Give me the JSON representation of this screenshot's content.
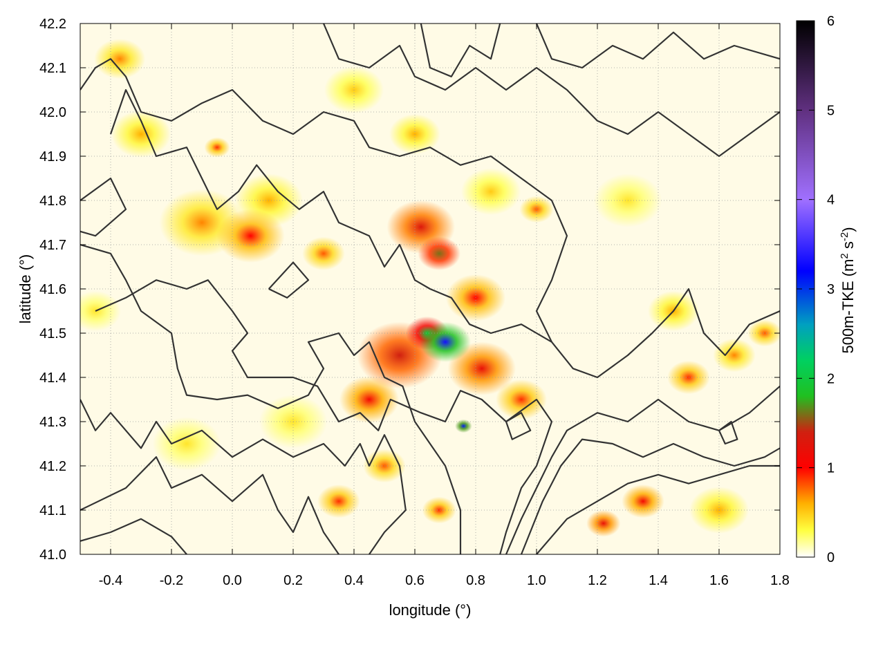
{
  "chart_data": {
    "type": "heatmap",
    "xlabel": "longitude (°)",
    "ylabel": "latitude (°)",
    "xlim": [
      -0.5,
      1.8
    ],
    "ylim": [
      41.0,
      42.2
    ],
    "x_ticks": [
      "-0.4",
      "-0.2",
      "0.0",
      "0.2",
      "0.4",
      "0.6",
      "0.8",
      "1.0",
      "1.2",
      "1.4",
      "1.6",
      "1.8"
    ],
    "x_tick_values": [
      -0.4,
      -0.2,
      0.0,
      0.2,
      0.4,
      0.6,
      0.8,
      1.0,
      1.2,
      1.4,
      1.6,
      1.8
    ],
    "y_ticks": [
      "41.0",
      "41.1",
      "41.2",
      "41.3",
      "41.4",
      "41.5",
      "41.6",
      "41.7",
      "41.8",
      "41.9",
      "42.0",
      "42.1",
      "42.2"
    ],
    "y_tick_values": [
      41.0,
      41.1,
      41.2,
      41.3,
      41.4,
      41.5,
      41.6,
      41.7,
      41.8,
      41.9,
      42.0,
      42.1,
      42.2
    ],
    "grid": true,
    "colorbar": {
      "label_prefix": "500m-TKE (m",
      "label_sup1": "2",
      "label_mid": " s",
      "label_sup2": "-2",
      "label_suffix": ")",
      "range": [
        0,
        6
      ],
      "ticks": [
        "0",
        "1",
        "2",
        "3",
        "4",
        "5",
        "6"
      ],
      "tick_values": [
        0,
        1,
        2,
        3,
        4,
        5,
        6
      ],
      "colors": [
        {
          "value": 0.0,
          "color": "#ffffff"
        },
        {
          "value": 0.3,
          "color": "#ffff40"
        },
        {
          "value": 0.6,
          "color": "#ffb000"
        },
        {
          "value": 1.0,
          "color": "#ff0000"
        },
        {
          "value": 1.4,
          "color": "#d02010"
        },
        {
          "value": 1.8,
          "color": "#20c020"
        },
        {
          "value": 2.2,
          "color": "#00d060"
        },
        {
          "value": 2.6,
          "color": "#00a0c0"
        },
        {
          "value": 3.2,
          "color": "#0000ff"
        },
        {
          "value": 4.0,
          "color": "#a070ff"
        },
        {
          "value": 5.0,
          "color": "#603080"
        },
        {
          "value": 6.0,
          "color": "#000000"
        }
      ]
    },
    "field_features": [
      {
        "lon": 0.7,
        "lat": 41.48,
        "value": 3.3,
        "radius": 0.06
      },
      {
        "lon": 0.76,
        "lat": 41.29,
        "value": 3.1,
        "radius": 0.02
      },
      {
        "lon": 0.64,
        "lat": 41.5,
        "value": 2.0,
        "radius": 0.05
      },
      {
        "lon": 0.68,
        "lat": 41.68,
        "value": 1.6,
        "radius": 0.05
      },
      {
        "lon": 0.62,
        "lat": 41.74,
        "value": 1.3,
        "radius": 0.08
      },
      {
        "lon": 0.55,
        "lat": 41.45,
        "value": 1.4,
        "radius": 0.1
      },
      {
        "lon": 0.45,
        "lat": 41.35,
        "value": 1.1,
        "radius": 0.07
      },
      {
        "lon": 0.82,
        "lat": 41.42,
        "value": 1.2,
        "radius": 0.08
      },
      {
        "lon": 0.8,
        "lat": 41.58,
        "value": 1.0,
        "radius": 0.07
      },
      {
        "lon": 0.95,
        "lat": 41.35,
        "value": 0.9,
        "radius": 0.06
      },
      {
        "lon": 0.06,
        "lat": 41.72,
        "value": 1.0,
        "radius": 0.08
      },
      {
        "lon": -0.1,
        "lat": 41.75,
        "value": 0.7,
        "radius": 0.1
      },
      {
        "lon": -0.37,
        "lat": 42.12,
        "value": 0.7,
        "radius": 0.06
      },
      {
        "lon": -0.3,
        "lat": 41.95,
        "value": 0.6,
        "radius": 0.07
      },
      {
        "lon": -0.05,
        "lat": 41.92,
        "value": 0.9,
        "radius": 0.03
      },
      {
        "lon": 0.12,
        "lat": 41.8,
        "value": 0.6,
        "radius": 0.08
      },
      {
        "lon": 0.3,
        "lat": 41.68,
        "value": 0.8,
        "radius": 0.05
      },
      {
        "lon": 0.4,
        "lat": 42.05,
        "value": 0.5,
        "radius": 0.07
      },
      {
        "lon": 0.6,
        "lat": 41.95,
        "value": 0.6,
        "radius": 0.06
      },
      {
        "lon": 0.85,
        "lat": 41.82,
        "value": 0.5,
        "radius": 0.07
      },
      {
        "lon": 1.0,
        "lat": 41.78,
        "value": 0.8,
        "radius": 0.04
      },
      {
        "lon": 1.3,
        "lat": 41.8,
        "value": 0.4,
        "radius": 0.08
      },
      {
        "lon": 1.45,
        "lat": 41.55,
        "value": 0.6,
        "radius": 0.06
      },
      {
        "lon": 1.5,
        "lat": 41.4,
        "value": 0.9,
        "radius": 0.05
      },
      {
        "lon": 1.65,
        "lat": 41.45,
        "value": 0.7,
        "radius": 0.05
      },
      {
        "lon": 1.75,
        "lat": 41.5,
        "value": 0.8,
        "radius": 0.04
      },
      {
        "lon": 1.35,
        "lat": 41.12,
        "value": 1.1,
        "radius": 0.05
      },
      {
        "lon": 1.22,
        "lat": 41.07,
        "value": 1.2,
        "radius": 0.04
      },
      {
        "lon": 1.6,
        "lat": 41.1,
        "value": 0.6,
        "radius": 0.07
      },
      {
        "lon": 0.35,
        "lat": 41.12,
        "value": 0.9,
        "radius": 0.05
      },
      {
        "lon": 0.5,
        "lat": 41.2,
        "value": 0.8,
        "radius": 0.05
      },
      {
        "lon": 0.68,
        "lat": 41.1,
        "value": 0.9,
        "radius": 0.04
      },
      {
        "lon": -0.15,
        "lat": 41.25,
        "value": 0.4,
        "radius": 0.08
      },
      {
        "lon": 0.2,
        "lat": 41.3,
        "value": 0.4,
        "radius": 0.08
      },
      {
        "lon": -0.45,
        "lat": 41.55,
        "value": 0.4,
        "radius": 0.06
      }
    ],
    "contours": [
      [
        [
          -0.5,
          41.03
        ],
        [
          -0.4,
          41.05
        ],
        [
          -0.3,
          41.08
        ],
        [
          -0.2,
          41.04
        ],
        [
          -0.15,
          41.0
        ]
      ],
      [
        [
          -0.5,
          41.1
        ],
        [
          -0.35,
          41.15
        ],
        [
          -0.25,
          41.22
        ],
        [
          -0.2,
          41.15
        ],
        [
          -0.1,
          41.18
        ],
        [
          0.0,
          41.12
        ],
        [
          0.1,
          41.18
        ],
        [
          0.15,
          41.1
        ],
        [
          0.2,
          41.05
        ],
        [
          0.25,
          41.13
        ],
        [
          0.3,
          41.05
        ],
        [
          0.35,
          41.0
        ]
      ],
      [
        [
          -0.5,
          41.35
        ],
        [
          -0.45,
          41.28
        ],
        [
          -0.4,
          41.32
        ],
        [
          -0.3,
          41.24
        ],
        [
          -0.25,
          41.3
        ],
        [
          -0.2,
          41.25
        ],
        [
          -0.1,
          41.28
        ],
        [
          0.0,
          41.22
        ],
        [
          0.1,
          41.26
        ],
        [
          0.2,
          41.22
        ],
        [
          0.3,
          41.25
        ],
        [
          0.37,
          41.2
        ],
        [
          0.42,
          41.25
        ],
        [
          0.45,
          41.2
        ],
        [
          0.5,
          41.27
        ],
        [
          0.55,
          41.2
        ],
        [
          0.57,
          41.1
        ],
        [
          0.5,
          41.05
        ],
        [
          0.45,
          41.0
        ]
      ],
      [
        [
          -0.5,
          41.7
        ],
        [
          -0.4,
          41.68
        ],
        [
          -0.35,
          41.62
        ],
        [
          -0.3,
          41.55
        ],
        [
          -0.2,
          41.5
        ],
        [
          -0.18,
          41.42
        ],
        [
          -0.15,
          41.36
        ],
        [
          -0.05,
          41.35
        ],
        [
          0.05,
          41.36
        ],
        [
          0.15,
          41.33
        ],
        [
          0.25,
          41.36
        ],
        [
          0.3,
          41.42
        ],
        [
          0.25,
          41.48
        ],
        [
          0.35,
          41.5
        ],
        [
          0.4,
          41.45
        ],
        [
          0.45,
          41.48
        ],
        [
          0.5,
          41.4
        ],
        [
          0.56,
          41.38
        ],
        [
          0.6,
          41.3
        ],
        [
          0.65,
          41.25
        ],
        [
          0.7,
          41.2
        ],
        [
          0.75,
          41.1
        ],
        [
          0.75,
          41.0
        ]
      ],
      [
        [
          -0.45,
          41.55
        ],
        [
          -0.35,
          41.58
        ],
        [
          -0.25,
          41.62
        ],
        [
          -0.15,
          41.6
        ],
        [
          -0.08,
          41.62
        ],
        [
          0.0,
          41.55
        ],
        [
          0.05,
          41.5
        ],
        [
          0.0,
          41.46
        ],
        [
          0.05,
          41.4
        ],
        [
          0.2,
          41.4
        ],
        [
          0.28,
          41.38
        ],
        [
          0.35,
          41.3
        ],
        [
          0.42,
          41.32
        ],
        [
          0.48,
          41.28
        ],
        [
          0.52,
          41.35
        ],
        [
          0.62,
          41.32
        ],
        [
          0.7,
          41.3
        ],
        [
          0.75,
          41.37
        ],
        [
          0.82,
          41.35
        ],
        [
          0.9,
          41.3
        ],
        [
          1.0,
          41.35
        ],
        [
          1.05,
          41.3
        ],
        [
          1.0,
          41.2
        ],
        [
          0.95,
          41.15
        ],
        [
          0.9,
          41.05
        ],
        [
          0.88,
          41.0
        ]
      ],
      [
        [
          -0.4,
          41.95
        ],
        [
          -0.35,
          42.05
        ],
        [
          -0.3,
          41.98
        ],
        [
          -0.25,
          41.9
        ],
        [
          -0.15,
          41.92
        ],
        [
          -0.1,
          41.85
        ],
        [
          -0.05,
          41.78
        ],
        [
          0.02,
          41.82
        ],
        [
          0.08,
          41.88
        ],
        [
          0.15,
          41.82
        ],
        [
          0.22,
          41.78
        ],
        [
          0.3,
          41.82
        ],
        [
          0.35,
          41.75
        ],
        [
          0.45,
          41.72
        ],
        [
          0.5,
          41.65
        ],
        [
          0.55,
          41.7
        ],
        [
          0.6,
          41.62
        ],
        [
          0.65,
          41.6
        ],
        [
          0.72,
          41.58
        ],
        [
          0.78,
          41.52
        ],
        [
          0.85,
          41.5
        ],
        [
          0.95,
          41.52
        ],
        [
          1.05,
          41.48
        ],
        [
          1.12,
          41.42
        ],
        [
          1.2,
          41.4
        ],
        [
          1.3,
          41.45
        ],
        [
          1.38,
          41.5
        ],
        [
          1.45,
          41.55
        ],
        [
          1.5,
          41.6
        ],
        [
          1.55,
          41.5
        ],
        [
          1.62,
          41.45
        ],
        [
          1.7,
          41.52
        ],
        [
          1.8,
          41.55
        ]
      ],
      [
        [
          -0.5,
          42.05
        ],
        [
          -0.45,
          42.1
        ],
        [
          -0.4,
          42.12
        ],
        [
          -0.35,
          42.08
        ],
        [
          -0.3,
          42.0
        ],
        [
          -0.2,
          41.98
        ],
        [
          -0.1,
          42.02
        ],
        [
          0.0,
          42.05
        ],
        [
          0.1,
          41.98
        ],
        [
          0.2,
          41.95
        ],
        [
          0.3,
          42.0
        ],
        [
          0.4,
          41.98
        ],
        [
          0.45,
          41.92
        ],
        [
          0.55,
          41.9
        ],
        [
          0.65,
          41.92
        ],
        [
          0.75,
          41.88
        ],
        [
          0.85,
          41.9
        ],
        [
          0.95,
          41.85
        ],
        [
          1.05,
          41.8
        ],
        [
          1.1,
          41.72
        ],
        [
          1.05,
          41.62
        ],
        [
          1.0,
          41.55
        ],
        [
          1.05,
          41.48
        ]
      ],
      [
        [
          0.3,
          42.2
        ],
        [
          0.35,
          42.12
        ],
        [
          0.45,
          42.1
        ],
        [
          0.55,
          42.15
        ],
        [
          0.6,
          42.08
        ],
        [
          0.7,
          42.05
        ],
        [
          0.8,
          42.1
        ],
        [
          0.9,
          42.05
        ],
        [
          1.0,
          42.1
        ],
        [
          1.1,
          42.05
        ],
        [
          1.2,
          41.98
        ],
        [
          1.3,
          41.95
        ],
        [
          1.4,
          42.0
        ],
        [
          1.5,
          41.95
        ],
        [
          1.6,
          41.9
        ],
        [
          1.7,
          41.95
        ],
        [
          1.8,
          42.0
        ]
      ],
      [
        [
          0.62,
          42.2
        ],
        [
          0.65,
          42.1
        ],
        [
          0.72,
          42.08
        ],
        [
          0.78,
          42.15
        ],
        [
          0.85,
          42.12
        ],
        [
          0.88,
          42.2
        ]
      ],
      [
        [
          1.0,
          42.2
        ],
        [
          1.05,
          42.12
        ],
        [
          1.15,
          42.1
        ],
        [
          1.25,
          42.15
        ],
        [
          1.35,
          42.12
        ],
        [
          1.45,
          42.18
        ],
        [
          1.55,
          42.12
        ],
        [
          1.65,
          42.15
        ],
        [
          1.8,
          42.12
        ]
      ],
      [
        [
          0.9,
          41.0
        ],
        [
          0.95,
          41.08
        ],
        [
          1.0,
          41.15
        ],
        [
          1.05,
          41.22
        ],
        [
          1.1,
          41.28
        ],
        [
          1.2,
          41.32
        ],
        [
          1.3,
          41.3
        ],
        [
          1.4,
          41.35
        ],
        [
          1.5,
          41.3
        ],
        [
          1.6,
          41.28
        ],
        [
          1.7,
          41.32
        ],
        [
          1.8,
          41.38
        ]
      ],
      [
        [
          0.95,
          41.0
        ],
        [
          1.02,
          41.12
        ],
        [
          1.08,
          41.2
        ],
        [
          1.15,
          41.26
        ],
        [
          1.25,
          41.25
        ],
        [
          1.35,
          41.22
        ],
        [
          1.45,
          41.25
        ],
        [
          1.55,
          41.22
        ],
        [
          1.65,
          41.2
        ],
        [
          1.75,
          41.22
        ],
        [
          1.8,
          41.24
        ]
      ],
      [
        [
          1.0,
          41.0
        ],
        [
          1.1,
          41.08
        ],
        [
          1.2,
          41.12
        ],
        [
          1.3,
          41.16
        ],
        [
          1.4,
          41.18
        ],
        [
          1.5,
          41.16
        ],
        [
          1.6,
          41.18
        ],
        [
          1.7,
          41.2
        ],
        [
          1.8,
          41.2
        ]
      ],
      [
        [
          -0.5,
          41.8
        ],
        [
          -0.4,
          41.85
        ],
        [
          -0.35,
          41.78
        ],
        [
          -0.45,
          41.72
        ],
        [
          -0.5,
          41.73
        ]
      ],
      [
        [
          0.12,
          41.6
        ],
        [
          0.18,
          41.58
        ],
        [
          0.25,
          41.62
        ],
        [
          0.2,
          41.66
        ],
        [
          0.12,
          41.6
        ]
      ],
      [
        [
          0.9,
          41.3
        ],
        [
          0.95,
          41.32
        ],
        [
          0.98,
          41.28
        ],
        [
          0.92,
          41.26
        ],
        [
          0.9,
          41.3
        ]
      ],
      [
        [
          1.6,
          41.28
        ],
        [
          1.64,
          41.3
        ],
        [
          1.66,
          41.26
        ],
        [
          1.62,
          41.25
        ],
        [
          1.6,
          41.28
        ]
      ]
    ]
  }
}
